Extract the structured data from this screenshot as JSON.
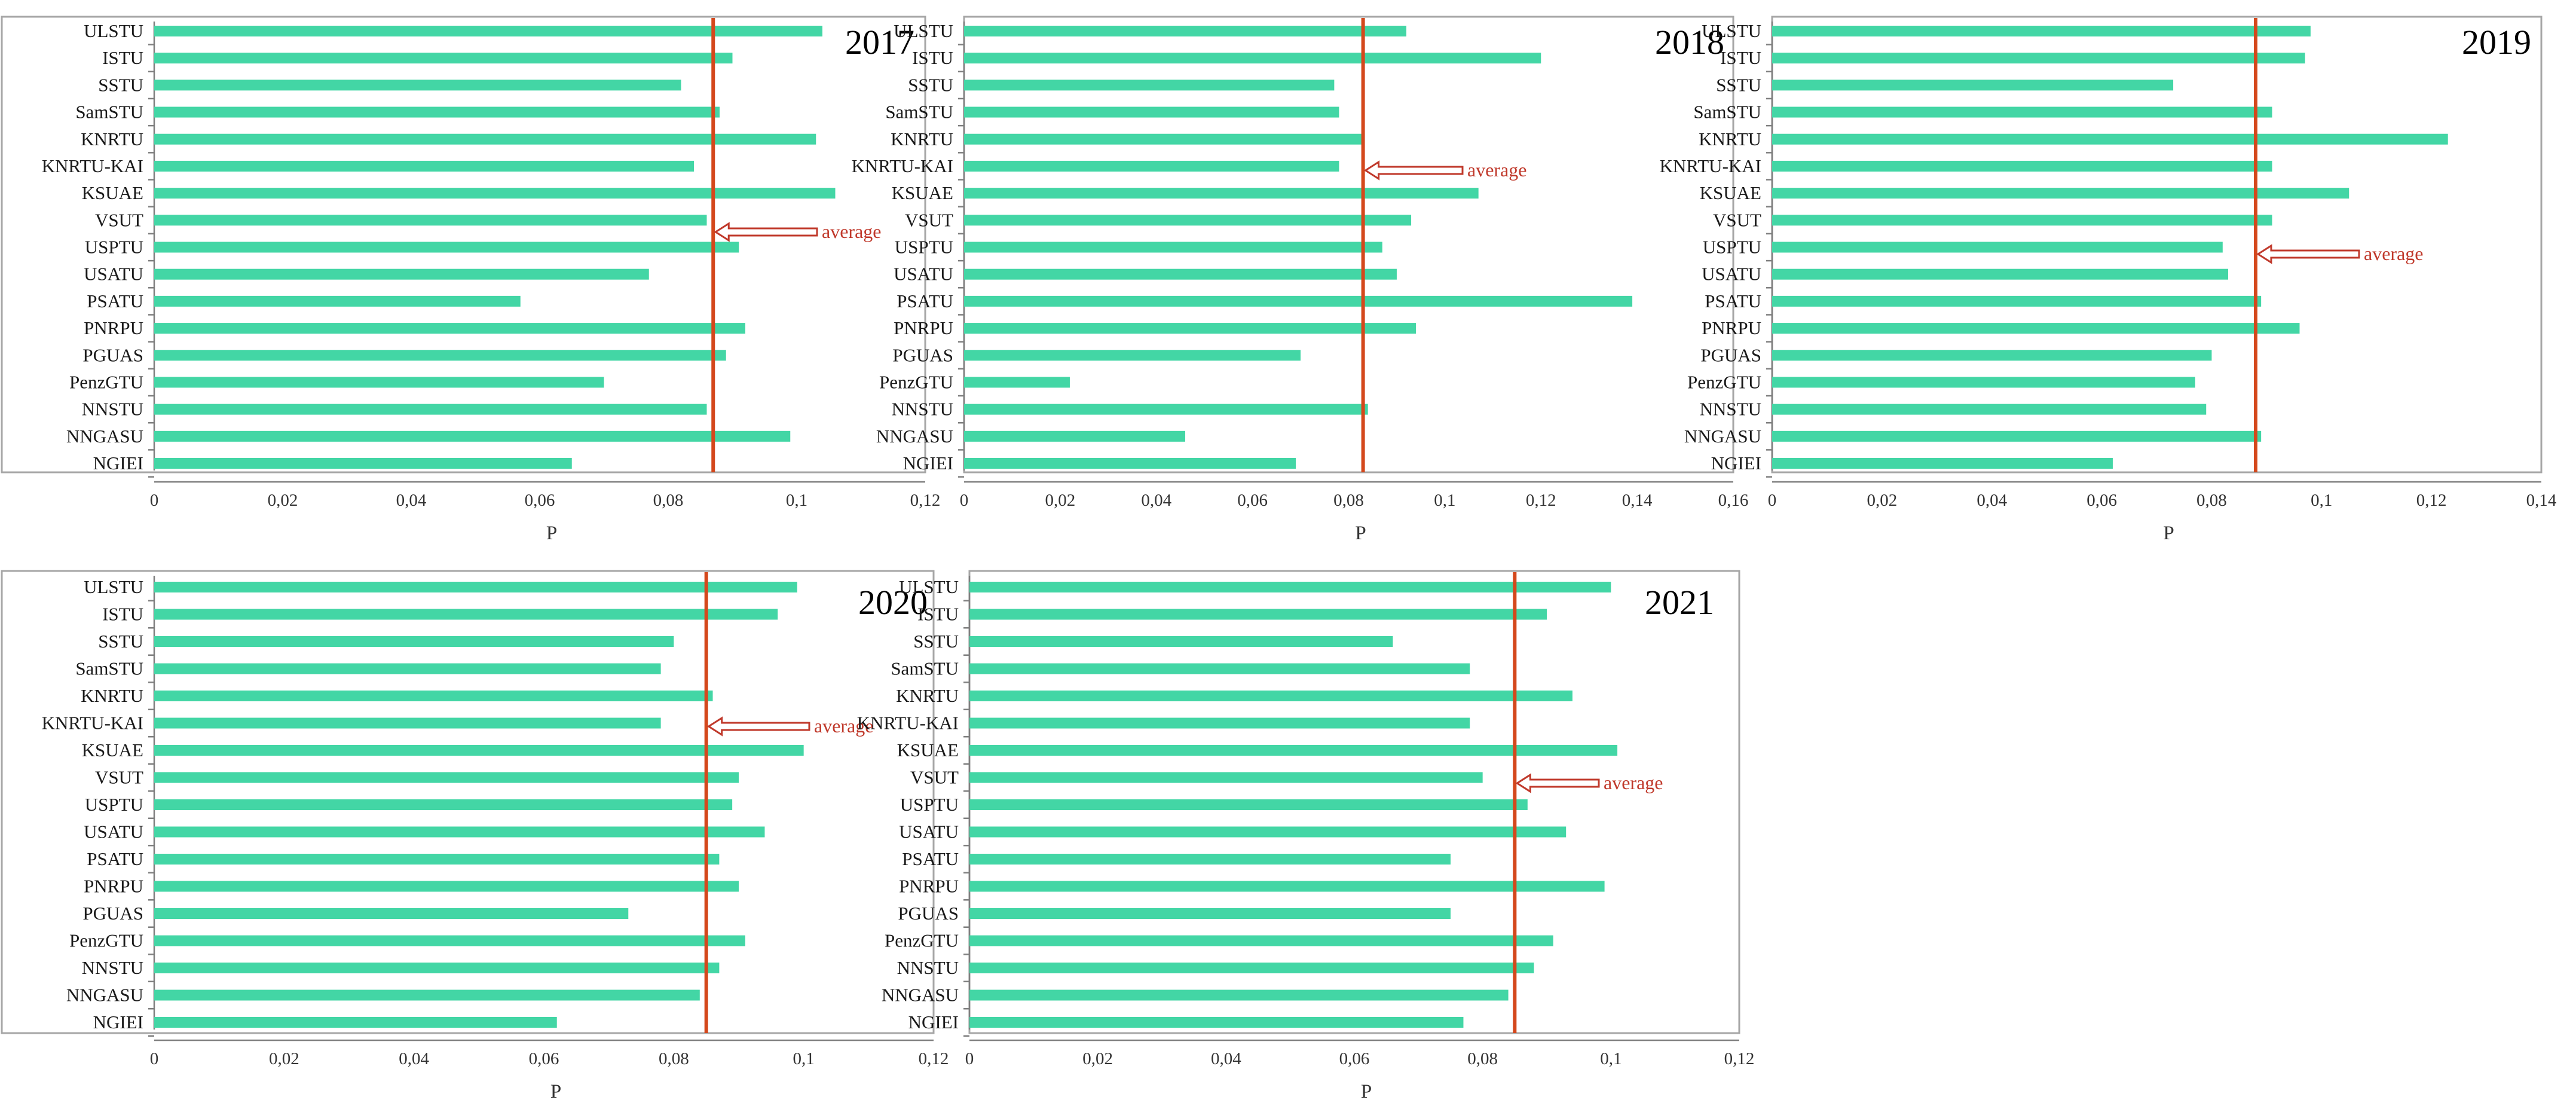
{
  "chart_data": [
    {
      "type": "bar",
      "orientation": "horizontal",
      "title": "2017",
      "xlabel": "P",
      "xlim": [
        0,
        0.12
      ],
      "xticks": [
        "0",
        "0,02",
        "0,04",
        "0,06",
        "0,08",
        "0,1",
        "0,12"
      ],
      "categories": [
        "ULSTU",
        "ISTU",
        "SSTU",
        "SamSTU",
        "KNRTU",
        "KNRTU-KAI",
        "KSUAE",
        "VSUT",
        "USPTU",
        "USATU",
        "PSATU",
        "PNRPU",
        "PGUAS",
        "PenzGTU",
        "NNSTU",
        "NNGASU",
        "NGIEI"
      ],
      "values": [
        0.104,
        0.09,
        0.082,
        0.088,
        0.103,
        0.084,
        0.106,
        0.086,
        0.091,
        0.077,
        0.057,
        0.092,
        0.089,
        0.07,
        0.086,
        0.099,
        0.065
      ],
      "average": 0.087,
      "annotation": "average",
      "grid": false,
      "legend": "none",
      "colors": {
        "bar": "#43d6a5",
        "average": "#d4481c"
      }
    },
    {
      "type": "bar",
      "orientation": "horizontal",
      "title": "2018",
      "xlabel": "P",
      "xlim": [
        0,
        0.16
      ],
      "xticks": [
        "0",
        "0,02",
        "0,04",
        "0,06",
        "0,08",
        "0,1",
        "0,12",
        "0,14",
        "0,16"
      ],
      "categories": [
        "ULSTU",
        "ISTU",
        "SSTU",
        "SamSTU",
        "KNRTU",
        "KNRTU-KAI",
        "KSUAE",
        "VSUT",
        "USPTU",
        "USATU",
        "PSATU",
        "PNRPU",
        "PGUAS",
        "PenzGTU",
        "NNSTU",
        "NNGASU",
        "NGIEI"
      ],
      "values": [
        0.092,
        0.12,
        0.077,
        0.078,
        0.083,
        0.078,
        0.107,
        0.093,
        0.087,
        0.09,
        0.139,
        0.094,
        0.07,
        0.022,
        0.084,
        0.046,
        0.069
      ],
      "average": 0.083,
      "annotation": "average",
      "grid": false,
      "legend": "none",
      "colors": {
        "bar": "#43d6a5",
        "average": "#d4481c"
      }
    },
    {
      "type": "bar",
      "orientation": "horizontal",
      "title": "2019",
      "xlabel": "P",
      "xlim": [
        0,
        0.14
      ],
      "xticks": [
        "0",
        "0,02",
        "0,04",
        "0,06",
        "0,08",
        "0,1",
        "0,12",
        "0,14"
      ],
      "categories": [
        "ULSTU",
        "ISTU",
        "SSTU",
        "SamSTU",
        "KNRTU",
        "KNRTU-KAI",
        "KSUAE",
        "VSUT",
        "USPTU",
        "USATU",
        "PSATU",
        "PNRPU",
        "PGUAS",
        "PenzGTU",
        "NNSTU",
        "NNGASU",
        "NGIEI"
      ],
      "values": [
        0.098,
        0.097,
        0.073,
        0.091,
        0.123,
        0.091,
        0.105,
        0.091,
        0.082,
        0.083,
        0.089,
        0.096,
        0.08,
        0.077,
        0.079,
        0.089,
        0.062
      ],
      "average": 0.088,
      "annotation": "average",
      "grid": false,
      "legend": "none",
      "colors": {
        "bar": "#43d6a5",
        "average": "#d4481c"
      }
    },
    {
      "type": "bar",
      "orientation": "horizontal",
      "title": "2020",
      "xlabel": "P",
      "xlim": [
        0,
        0.12
      ],
      "xticks": [
        "0",
        "0,02",
        "0,04",
        "0,06",
        "0,08",
        "0,1",
        "0,12"
      ],
      "categories": [
        "ULSTU",
        "ISTU",
        "SSTU",
        "SamSTU",
        "KNRTU",
        "KNRTU-KAI",
        "KSUAE",
        "VSUT",
        "USPTU",
        "USATU",
        "PSATU",
        "PNRPU",
        "PGUAS",
        "PenzGTU",
        "NNSTU",
        "NNGASU",
        "NGIEI"
      ],
      "values": [
        0.099,
        0.096,
        0.08,
        0.078,
        0.086,
        0.078,
        0.1,
        0.09,
        0.089,
        0.094,
        0.087,
        0.09,
        0.073,
        0.091,
        0.087,
        0.084,
        0.062
      ],
      "average": 0.085,
      "annotation": "average",
      "grid": false,
      "legend": "none",
      "colors": {
        "bar": "#43d6a5",
        "average": "#d4481c"
      }
    },
    {
      "type": "bar",
      "orientation": "horizontal",
      "title": "2021",
      "xlabel": "P",
      "xlim": [
        0,
        0.12
      ],
      "xticks": [
        "0",
        "0,02",
        "0,04",
        "0,06",
        "0,08",
        "0,1",
        "0,12"
      ],
      "categories": [
        "ULSTU",
        "ISTU",
        "SSTU",
        "SamSTU",
        "KNRTU",
        "KNRTU-KAI",
        "KSUAE",
        "VSUT",
        "USPTU",
        "USATU",
        "PSATU",
        "PNRPU",
        "PGUAS",
        "PenzGTU",
        "NNSTU",
        "NNGASU",
        "NGIEI"
      ],
      "values": [
        0.1,
        0.09,
        0.066,
        0.078,
        0.094,
        0.078,
        0.101,
        0.08,
        0.087,
        0.093,
        0.075,
        0.099,
        0.075,
        0.091,
        0.088,
        0.084,
        0.077
      ],
      "average": 0.085,
      "annotation": "average",
      "grid": false,
      "legend": "none",
      "colors": {
        "bar": "#43d6a5",
        "average": "#d4481c"
      }
    }
  ]
}
